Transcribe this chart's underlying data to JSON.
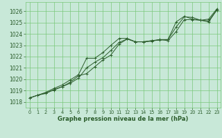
{
  "bg_color": "#c8e8d8",
  "grid_color": "#7ac87a",
  "line_color": "#2a5c2a",
  "title": "Graphe pression niveau de la mer (hPa)",
  "ylim": [
    1017.5,
    1026.8
  ],
  "xlim": [
    -0.5,
    23.5
  ],
  "yticks": [
    1018,
    1019,
    1020,
    1021,
    1022,
    1023,
    1024,
    1025,
    1026
  ],
  "xticks": [
    0,
    1,
    2,
    3,
    4,
    5,
    6,
    7,
    8,
    9,
    10,
    11,
    12,
    13,
    14,
    15,
    16,
    17,
    18,
    19,
    20,
    21,
    22,
    23
  ],
  "series": [
    [
      1018.35,
      1018.6,
      1018.75,
      1019.1,
      1019.35,
      1019.75,
      1020.3,
      1020.5,
      1021.1,
      1021.7,
      1022.15,
      1023.1,
      1023.55,
      1023.3,
      1023.3,
      1023.35,
      1023.5,
      1023.4,
      1024.2,
      1025.25,
      1025.25,
      1025.2,
      1025.05,
      1026.1
    ],
    [
      1018.35,
      1018.6,
      1018.8,
      1019.05,
      1019.35,
      1019.65,
      1020.1,
      1021.0,
      1021.5,
      1021.9,
      1022.55,
      1023.25,
      1023.55,
      1023.3,
      1023.3,
      1023.4,
      1023.5,
      1023.5,
      1024.6,
      1025.5,
      1025.45,
      1025.2,
      1025.15,
      1026.1
    ],
    [
      1018.35,
      1018.6,
      1018.85,
      1019.2,
      1019.5,
      1019.95,
      1020.4,
      1021.85,
      1021.85,
      1022.35,
      1023.0,
      1023.6,
      1023.6,
      1023.3,
      1023.3,
      1023.4,
      1023.45,
      1023.5,
      1025.05,
      1025.55,
      1025.3,
      1025.2,
      1025.3,
      1026.2
    ]
  ]
}
